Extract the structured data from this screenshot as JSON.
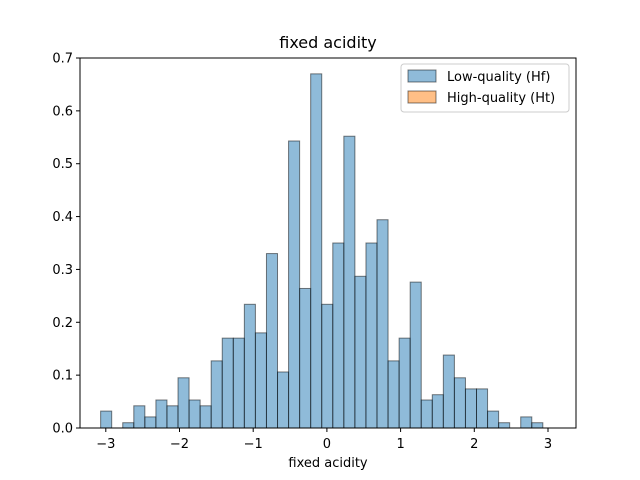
{
  "chart_data": {
    "type": "bar",
    "title": "fixed acidity",
    "xlabel": "fixed acidity",
    "ylabel": "",
    "xlim": [
      -3.35,
      3.38
    ],
    "ylim": [
      0,
      0.7
    ],
    "xticks": [
      -3,
      -2,
      -1,
      0,
      1,
      2,
      3
    ],
    "yticks": [
      0.0,
      0.1,
      0.2,
      0.3,
      0.4,
      0.5,
      0.6,
      0.7
    ],
    "grid": false,
    "legend_position": "top-right",
    "bin_start": -3.07,
    "bin_width": 0.15,
    "series": [
      {
        "name": "Low-quality (Hf)",
        "color": "#1f77b4",
        "values": [
          0.032,
          0.0,
          0.01,
          0.042,
          0.021,
          0.053,
          0.042,
          0.095,
          0.053,
          0.042,
          0.127,
          0.17,
          0.17,
          0.234,
          0.18,
          0.33,
          0.106,
          0.543,
          0.264,
          0.67,
          0.234,
          0.35,
          0.552,
          0.287,
          0.35,
          0.394,
          0.127,
          0.17,
          0.276,
          0.053,
          0.063,
          0.138,
          0.095,
          0.074,
          0.074,
          0.032,
          0.01,
          0.0,
          0.021,
          0.01
        ]
      },
      {
        "name": "High-quality (Ht)",
        "color": "#ff7f0e",
        "values": []
      }
    ]
  },
  "colors": {
    "low_fill": "#1f77b4",
    "high_fill": "#ff7f0e",
    "edge": "#000000"
  }
}
